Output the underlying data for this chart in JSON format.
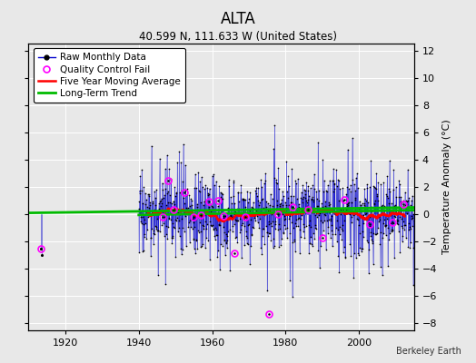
{
  "title": "ALTA",
  "subtitle": "40.599 N, 111.633 W (United States)",
  "credit": "Berkeley Earth",
  "ylabel": "Temperature Anomaly (°C)",
  "xlim": [
    1910,
    2015
  ],
  "ylim": [
    -8.5,
    12.5
  ],
  "yticks": [
    -8,
    -6,
    -4,
    -2,
    0,
    2,
    4,
    6,
    8,
    10,
    12
  ],
  "xticks": [
    1920,
    1940,
    1960,
    1980,
    2000
  ],
  "data_start_year": 1940,
  "data_end_year": 2014,
  "early_years": [
    1913.3,
    1913.5
  ],
  "early_vals": [
    -2.5,
    -3.0
  ],
  "seed": 17,
  "bg_color": "#e8e8e8",
  "plot_bg_color": "#e8e8e8",
  "line_color": "#0000cc",
  "marker_color": "#000000",
  "qc_color": "#ff00ff",
  "moving_avg_color": "#ff0000",
  "trend_color": "#00bb00",
  "legend_fontsize": 7.5,
  "title_fontsize": 12,
  "subtitle_fontsize": 8.5,
  "tick_fontsize": 8,
  "figwidth": 5.24,
  "figheight": 4.0,
  "dpi": 100
}
